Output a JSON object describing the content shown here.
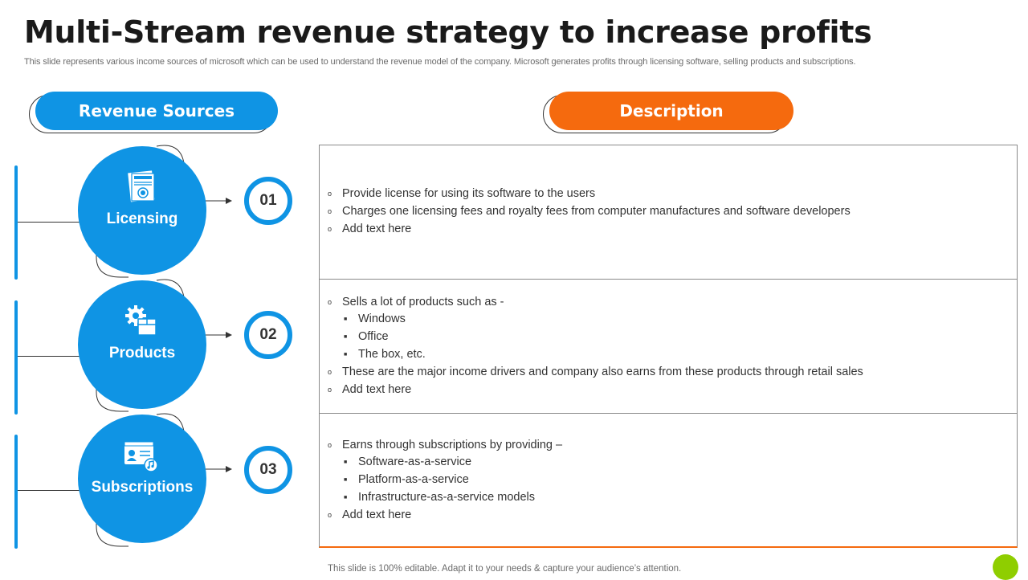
{
  "title": "Multi-Stream revenue strategy to increase profits",
  "subtitle": "This slide represents various income sources of microsoft which can be used to understand the revenue model of the company. Microsoft generates profits through licensing software, selling products and subscriptions.",
  "headers": {
    "revenue_sources": "Revenue Sources",
    "description": "Description"
  },
  "colors": {
    "blue": "#0f94e4",
    "orange": "#f56a0e",
    "green": "#8fce00"
  },
  "sources": [
    {
      "label": "Licensing",
      "number": "01",
      "icon": "license-certificate-icon",
      "items": [
        {
          "text": "Provide license for using its software to the users"
        },
        {
          "text": "Charges one licensing fees and royalty fees from computer manufactures and software developers"
        },
        {
          "text": "Add text here"
        }
      ]
    },
    {
      "label": "Products",
      "number": "02",
      "icon": "gear-box-icon",
      "items": [
        {
          "text": "Sells a lot of products such as -"
        },
        {
          "text": "Windows",
          "sub": true
        },
        {
          "text": "Office",
          "sub": true
        },
        {
          "text": "The box, etc.",
          "sub": true
        },
        {
          "text": "These are the major income drivers and company also earns from these products through retail sales"
        },
        {
          "text": "Add text here"
        }
      ]
    },
    {
      "label": "Subscriptions",
      "number": "03",
      "icon": "subscription-card-icon",
      "items": [
        {
          "text": "Earns through subscriptions by providing –"
        },
        {
          "text": "Software-as-a-service",
          "sub": true
        },
        {
          "text": "Platform-as-a-service",
          "sub": true
        },
        {
          "text": "Infrastructure-as-a-service models",
          "sub": true
        },
        {
          "text": "Add text here"
        }
      ]
    }
  ],
  "footer": "This slide is 100% editable. Adapt it to your needs & capture your audience’s attention."
}
